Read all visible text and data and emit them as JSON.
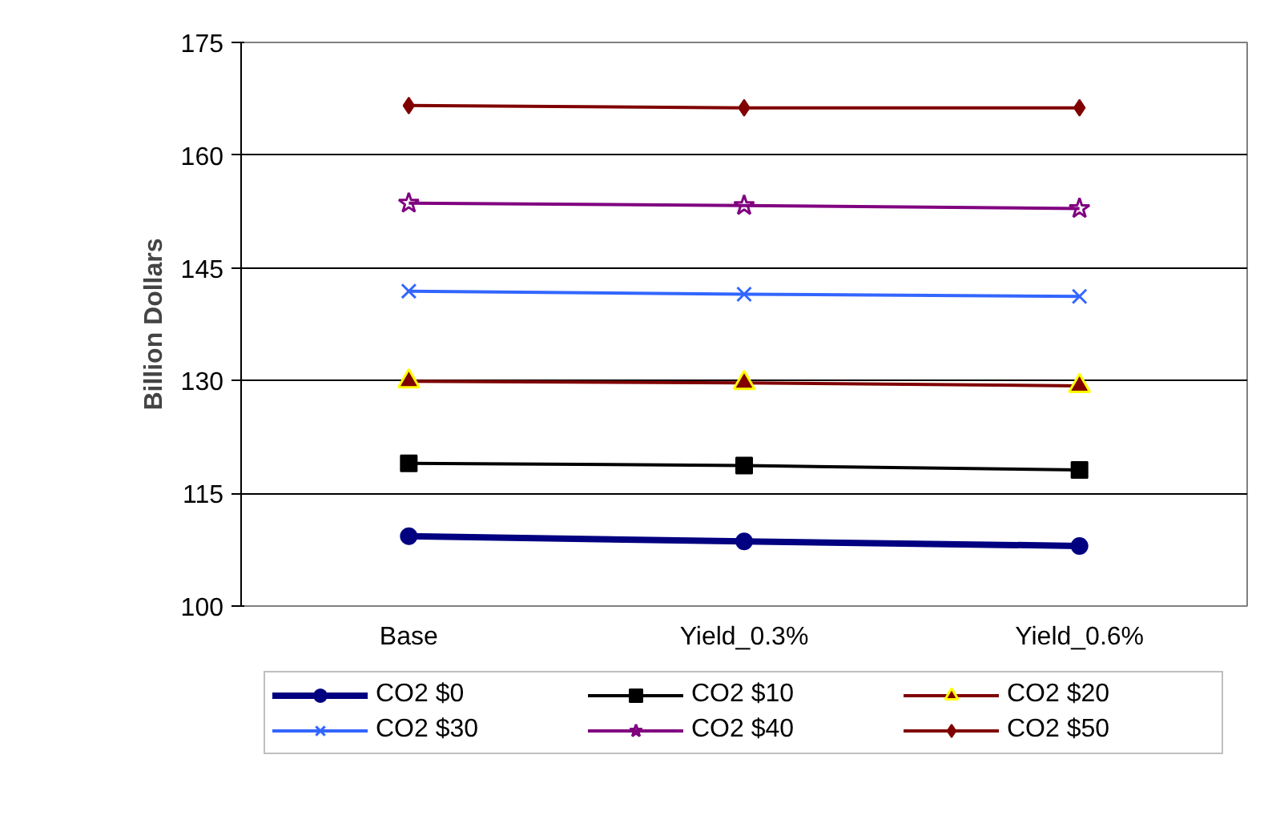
{
  "chart_data": {
    "type": "line",
    "ylabel": "Billion Dollars",
    "categories": [
      "Base",
      "Yield_0.3%",
      "Yield_0.6%"
    ],
    "ylim": [
      100,
      175
    ],
    "yticks": [
      100,
      115,
      130,
      145,
      160,
      175
    ],
    "grid": "y",
    "legend": "bottom",
    "line_style": "solid",
    "series": [
      {
        "name": "CO2 $0",
        "color": "#000080",
        "marker": "circle",
        "values": [
          109.3,
          108.6,
          108.0
        ]
      },
      {
        "name": "CO2 $10",
        "color": "#000000",
        "marker": "square",
        "values": [
          119.0,
          118.7,
          118.1
        ]
      },
      {
        "name": "CO2 $20",
        "color": "#800000",
        "marker": "triangle",
        "values": [
          129.9,
          129.7,
          129.3
        ]
      },
      {
        "name": "CO2 $30",
        "color": "#3366ff",
        "marker": "cross",
        "values": [
          141.9,
          141.5,
          141.2
        ]
      },
      {
        "name": "CO2 $40",
        "color": "#800080",
        "marker": "star",
        "values": [
          153.6,
          153.3,
          152.9
        ]
      },
      {
        "name": "CO2 $50",
        "color": "#800000",
        "marker": "diamond",
        "values": [
          166.6,
          166.3,
          166.3
        ]
      }
    ]
  }
}
